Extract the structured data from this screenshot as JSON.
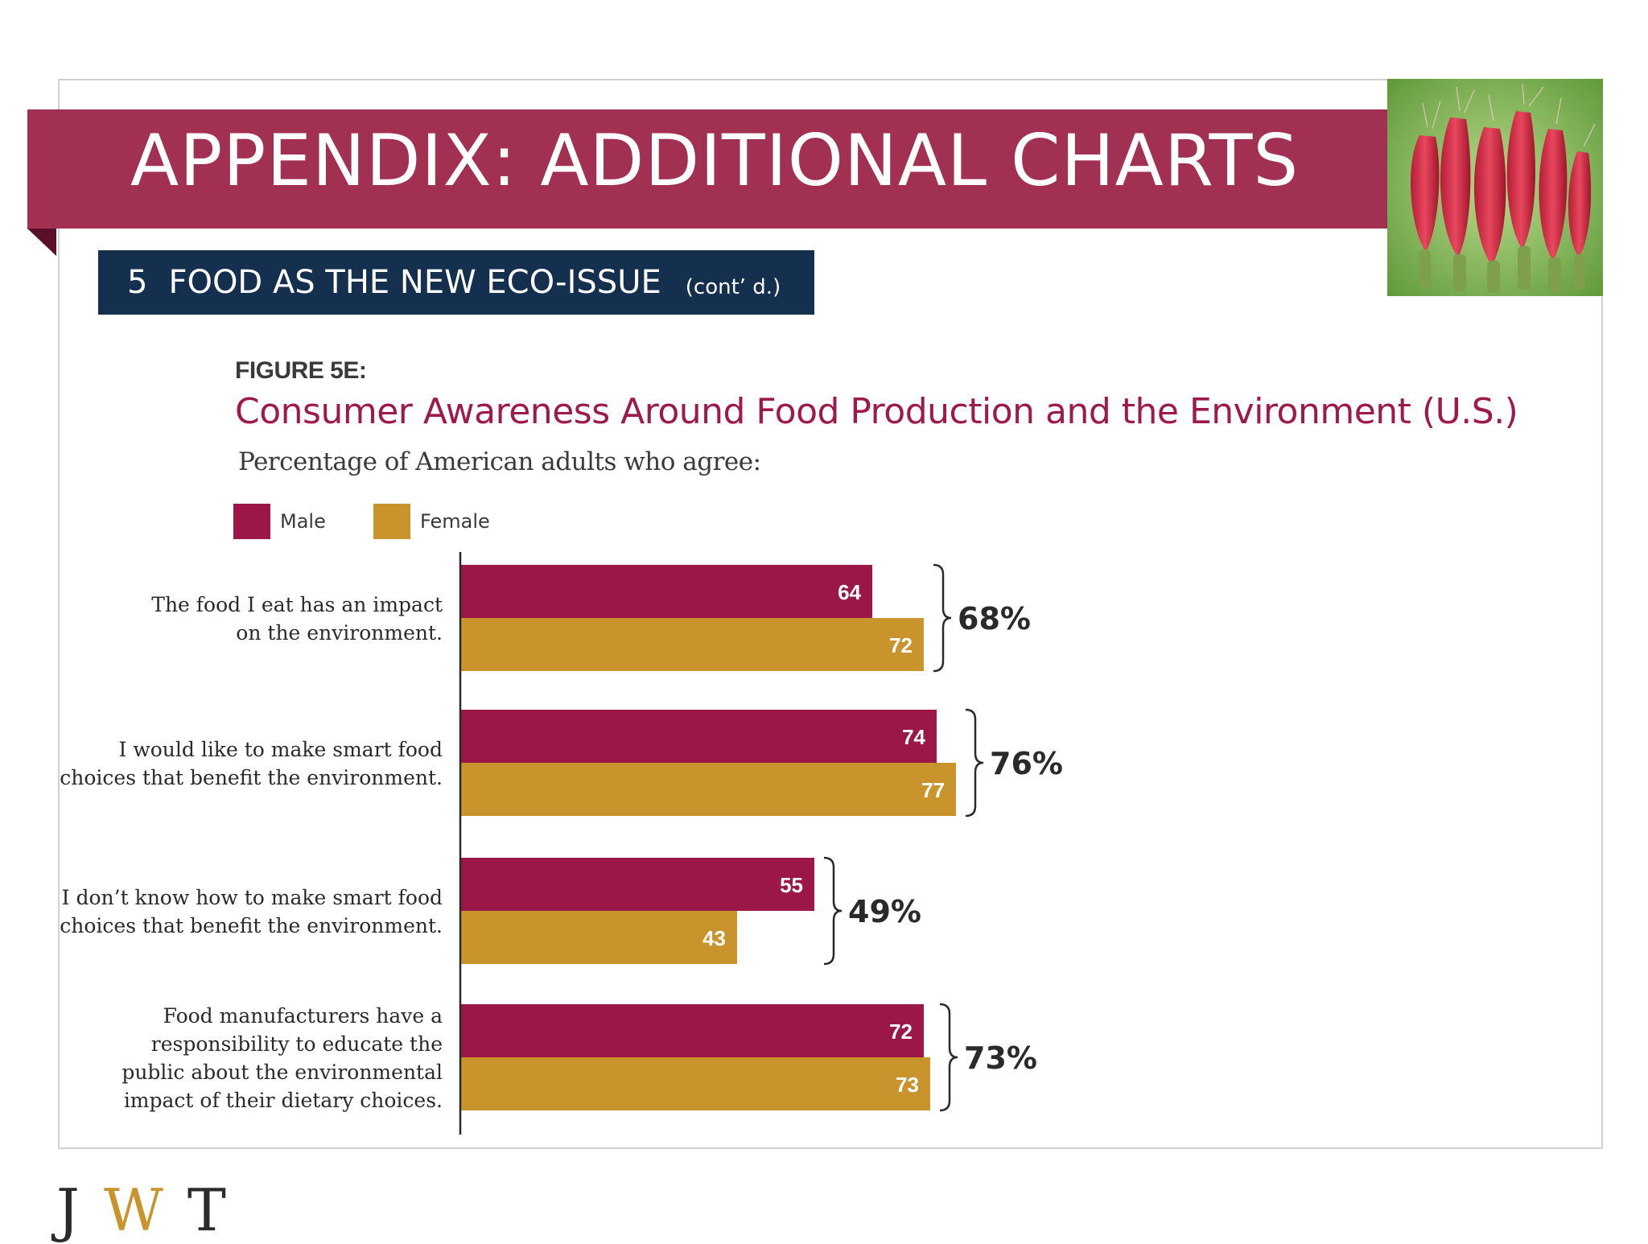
{
  "slide": {
    "title": "APPENDIX: ADDITIONAL CHARTS",
    "section_number": "5",
    "section_title": "FOOD AS THE NEW ECO-ISSUE",
    "section_cont": "(cont’ d.)",
    "footer_logo": [
      "J",
      "W",
      "T"
    ]
  },
  "colors": {
    "banner": "#a23053",
    "section_box": "#152f4e",
    "male": "#9b1747",
    "female": "#c8942b"
  },
  "chart_data": {
    "type": "bar",
    "orientation": "horizontal",
    "figure_label": "FIGURE 5E:",
    "title": "Consumer Awareness Around Food Production and the Environment (U.S.)",
    "subtitle": "Percentage of American adults who agree:",
    "legend_position": "top-left",
    "grid": false,
    "xlim": [
      0,
      100
    ],
    "categories": [
      [
        "The food I eat has an impact",
        "on the environment."
      ],
      [
        "I would like to make smart food",
        "choices that benefit the environment."
      ],
      [
        "I don’t know how to make smart food",
        "choices that benefit the environment."
      ],
      [
        "Food manufacturers have a",
        "responsibility to educate the",
        "public about the environmental",
        "impact of their dietary choices."
      ]
    ],
    "series": [
      {
        "name": "Male",
        "values": [
          64,
          74,
          55,
          72
        ]
      },
      {
        "name": "Female",
        "values": [
          72,
          77,
          43,
          73
        ]
      }
    ],
    "totals": [
      "68%",
      "76%",
      "49%",
      "73%"
    ]
  }
}
